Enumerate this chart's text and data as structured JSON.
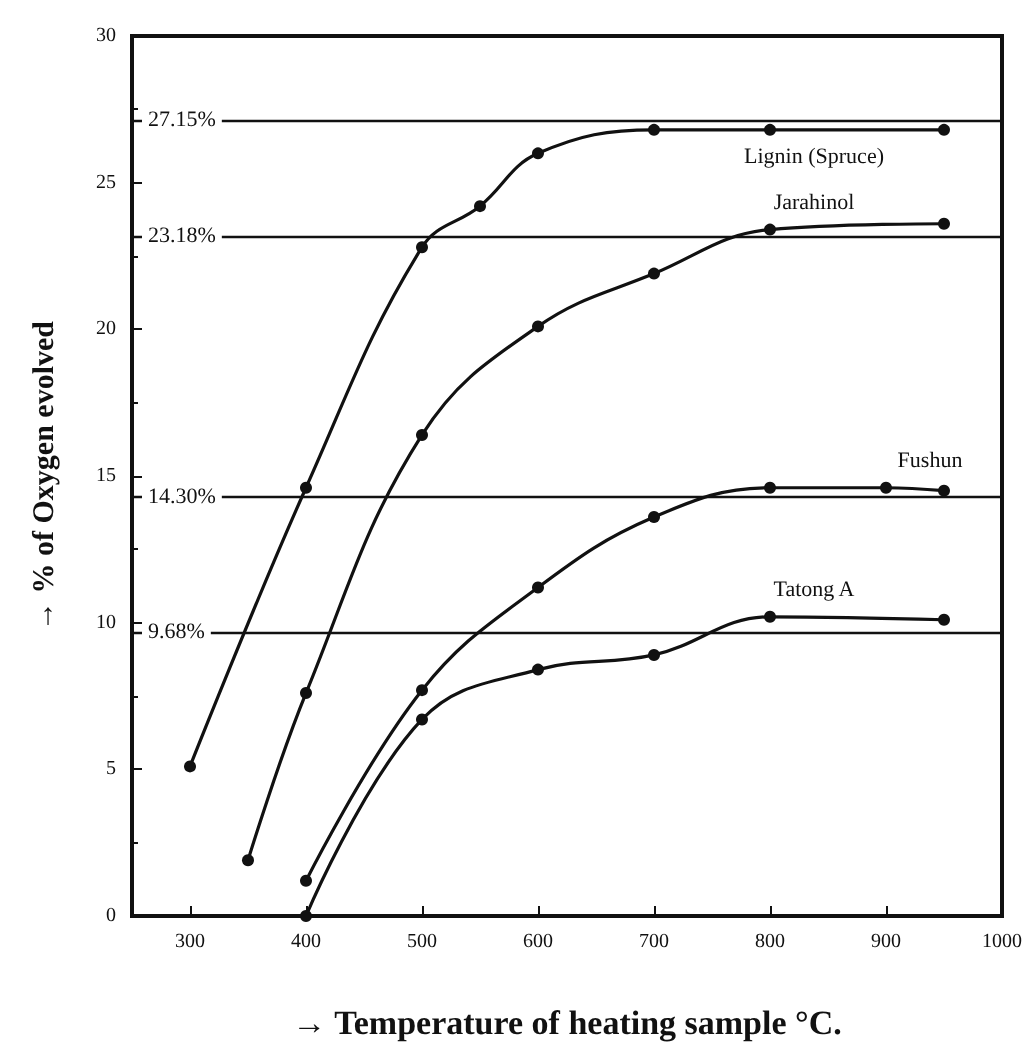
{
  "chart_data": {
    "type": "line",
    "xlabel": "→ Temperature of heating sample °C.",
    "ylabel": "→ % of Oxygen evolved",
    "xlim": [
      250,
      1000
    ],
    "xticks": [
      300,
      400,
      500,
      600,
      700,
      800,
      900,
      1000
    ],
    "ylim": [
      0,
      30
    ],
    "yticks": [
      0,
      5,
      10,
      15,
      20,
      25,
      30
    ],
    "grid": false,
    "legend": false,
    "marker": "circle",
    "line_style": "solid",
    "series": [
      {
        "name": "Lignin (Spruce)",
        "color": "#111111",
        "x": [
          300,
          400,
          500,
          550,
          600,
          700,
          800,
          950
        ],
        "values": [
          5.1,
          14.6,
          22.8,
          24.2,
          26,
          26.8,
          26.8,
          26.8
        ]
      },
      {
        "name": "Jarahinol",
        "color": "#111111",
        "x": [
          350,
          400,
          500,
          600,
          700,
          800,
          950
        ],
        "values": [
          1.9,
          7.6,
          16.4,
          20.1,
          21.9,
          23.4,
          23.6
        ]
      },
      {
        "name": "Fushun",
        "color": "#111111",
        "x": [
          400,
          500,
          600,
          700,
          800,
          900,
          950
        ],
        "values": [
          1.2,
          7.7,
          11.2,
          13.6,
          14.6,
          14.6,
          14.5
        ]
      },
      {
        "name": "Tatong A",
        "color": "#111111",
        "x": [
          400,
          500,
          600,
          700,
          800,
          950
        ],
        "values": [
          0,
          6.7,
          8.4,
          8.9,
          10.2,
          10.1
        ]
      }
    ],
    "ref_lines": [
      {
        "axis": "y",
        "value": 27.15,
        "label": "27.15%"
      },
      {
        "axis": "y",
        "value": 23.18,
        "label": "23.18%"
      },
      {
        "axis": "y",
        "value": 14.3,
        "label": "14.30%"
      },
      {
        "axis": "y",
        "value": 9.68,
        "label": "9.68%"
      }
    ]
  }
}
